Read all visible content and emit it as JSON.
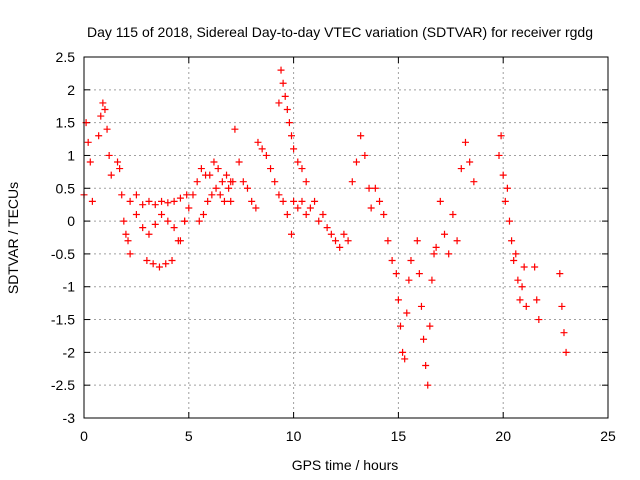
{
  "chart_data": {
    "type": "scatter",
    "title": "Day 115 of 2018, Sidereal Day-to-day VTEC variation (SDTVAR) for receiver rgdg",
    "xlabel": "GPS time / hours",
    "ylabel": "SDTVAR / TECUs",
    "xlim": [
      0,
      25
    ],
    "ylim": [
      -3,
      2.5
    ],
    "xticks": [
      0,
      5,
      10,
      15,
      20,
      25
    ],
    "xtick_labels": [
      "0",
      "5",
      "10",
      "15",
      "20",
      "25"
    ],
    "yticks": [
      2.5,
      2,
      1.5,
      1,
      0.5,
      0,
      -0.5,
      -1,
      -1.5,
      -2,
      -2.5,
      -3
    ],
    "ytick_labels": [
      "2.5",
      "2",
      "1.5",
      "1",
      "0.5",
      "0",
      "-0.5",
      "-1",
      "-1.5",
      "-2",
      "-2.5",
      "-3"
    ],
    "grid": true,
    "marker": "+",
    "color": "#ff0000",
    "series": [
      {
        "name": "SDTVAR",
        "note": "representative traces sampled from the dense cloud of + markers",
        "traces": [
          {
            "x": [
              0.0,
              0.1,
              0.2,
              0.3,
              0.4
            ],
            "y": [
              0.4,
              1.5,
              1.2,
              0.9,
              0.3
            ]
          },
          {
            "x": [
              0.7,
              0.8,
              0.9,
              1.0,
              1.1,
              1.2,
              1.3
            ],
            "y": [
              1.3,
              1.6,
              1.8,
              1.7,
              1.4,
              1.0,
              0.7
            ]
          },
          {
            "x": [
              1.6,
              1.7,
              1.8,
              1.9,
              2.0,
              2.1,
              2.2
            ],
            "y": [
              0.9,
              0.8,
              0.4,
              0.0,
              -0.2,
              -0.3,
              -0.5
            ]
          },
          {
            "x": [
              2.2,
              2.5,
              2.8,
              3.1,
              3.4,
              3.7,
              4.0,
              4.3,
              4.6,
              4.9
            ],
            "y": [
              0.3,
              0.4,
              0.25,
              0.3,
              0.25,
              0.3,
              0.28,
              0.3,
              0.35,
              0.4
            ]
          },
          {
            "x": [
              2.5,
              2.8,
              3.1,
              3.4,
              3.7,
              4.0,
              4.3,
              4.6
            ],
            "y": [
              0.1,
              -0.1,
              -0.2,
              -0.05,
              0.1,
              0.0,
              -0.1,
              -0.3
            ]
          },
          {
            "x": [
              3.0,
              3.3,
              3.6,
              3.9,
              4.2,
              4.5,
              4.8
            ],
            "y": [
              -0.6,
              -0.65,
              -0.7,
              -0.65,
              -0.6,
              -0.3,
              0.0
            ]
          },
          {
            "x": [
              4.8,
              5.0,
              5.2,
              5.4,
              5.6,
              5.8,
              6.0,
              6.2,
              6.4,
              6.6,
              6.8,
              7.0
            ],
            "y": [
              0.0,
              0.2,
              0.4,
              0.6,
              0.8,
              0.7,
              0.7,
              0.9,
              0.8,
              0.6,
              0.7,
              0.6
            ]
          },
          {
            "x": [
              5.5,
              5.7,
              5.9,
              6.1,
              6.3,
              6.5,
              6.7,
              6.9,
              7.1
            ],
            "y": [
              0.0,
              0.1,
              0.3,
              0.4,
              0.5,
              0.4,
              0.3,
              0.5,
              0.6
            ]
          },
          {
            "x": [
              7.0,
              7.2,
              7.4,
              7.6,
              7.8,
              8.0,
              8.2
            ],
            "y": [
              0.3,
              1.4,
              0.9,
              0.6,
              0.5,
              0.3,
              0.2
            ]
          },
          {
            "x": [
              8.3,
              8.5,
              8.7,
              8.9,
              9.1,
              9.3,
              9.5,
              9.7,
              9.9
            ],
            "y": [
              1.2,
              1.1,
              1.0,
              0.8,
              0.6,
              0.4,
              0.3,
              0.1,
              -0.2
            ]
          },
          {
            "x": [
              9.3,
              9.4,
              9.5,
              9.6,
              9.7,
              9.8,
              9.9,
              10.0,
              10.2,
              10.4,
              10.6
            ],
            "y": [
              1.8,
              2.3,
              2.1,
              1.9,
              1.7,
              1.5,
              1.3,
              1.1,
              0.9,
              0.8,
              0.6
            ]
          },
          {
            "x": [
              10.0,
              10.2,
              10.4,
              10.6,
              10.8,
              11.0,
              11.2,
              11.4,
              11.6,
              11.8,
              12.0,
              12.2,
              12.4
            ],
            "y": [
              0.3,
              0.2,
              0.3,
              0.1,
              0.2,
              0.3,
              0.0,
              0.1,
              -0.1,
              -0.2,
              -0.3,
              -0.4,
              -0.2
            ]
          },
          {
            "x": [
              12.6,
              12.8,
              13.0,
              13.2,
              13.4,
              13.6
            ],
            "y": [
              -0.3,
              0.6,
              0.9,
              1.3,
              1.0,
              0.5
            ]
          },
          {
            "x": [
              13.7,
              13.9,
              14.1,
              14.3,
              14.5,
              14.7
            ],
            "y": [
              0.2,
              0.5,
              0.3,
              0.1,
              -0.3,
              -0.6
            ]
          },
          {
            "x": [
              14.9,
              15.0,
              15.1,
              15.2,
              15.3,
              15.4,
              15.5,
              15.6
            ],
            "y": [
              -0.8,
              -1.2,
              -1.6,
              -2.0,
              -2.1,
              -1.4,
              -0.9,
              -0.6
            ]
          },
          {
            "x": [
              15.9,
              16.0,
              16.1,
              16.2,
              16.3,
              16.4,
              16.5,
              16.6,
              16.7
            ],
            "y": [
              -0.3,
              -0.8,
              -1.3,
              -1.8,
              -2.2,
              -2.5,
              -1.6,
              -0.9,
              -0.5
            ]
          },
          {
            "x": [
              16.8,
              17.0,
              17.2,
              17.4,
              17.6,
              17.8,
              18.0,
              18.2,
              18.4,
              18.6
            ],
            "y": [
              -0.4,
              0.3,
              -0.2,
              -0.5,
              0.1,
              -0.3,
              0.8,
              1.2,
              0.9,
              0.6
            ]
          },
          {
            "x": [
              19.8,
              19.9,
              20.0,
              20.1,
              20.2,
              20.3,
              20.4,
              20.5
            ],
            "y": [
              1.0,
              1.3,
              0.7,
              0.3,
              0.5,
              0.0,
              -0.3,
              -0.6
            ]
          },
          {
            "x": [
              20.6,
              20.7,
              20.8,
              20.9,
              21.0,
              21.1
            ],
            "y": [
              -0.5,
              -0.9,
              -1.2,
              -1.0,
              -0.7,
              -1.3
            ]
          },
          {
            "x": [
              21.5,
              21.6,
              21.7
            ],
            "y": [
              -0.7,
              -1.2,
              -1.5
            ]
          },
          {
            "x": [
              22.7,
              22.8,
              22.9,
              23.0
            ],
            "y": [
              -0.8,
              -1.3,
              -1.7,
              -2.0
            ]
          }
        ]
      }
    ]
  }
}
